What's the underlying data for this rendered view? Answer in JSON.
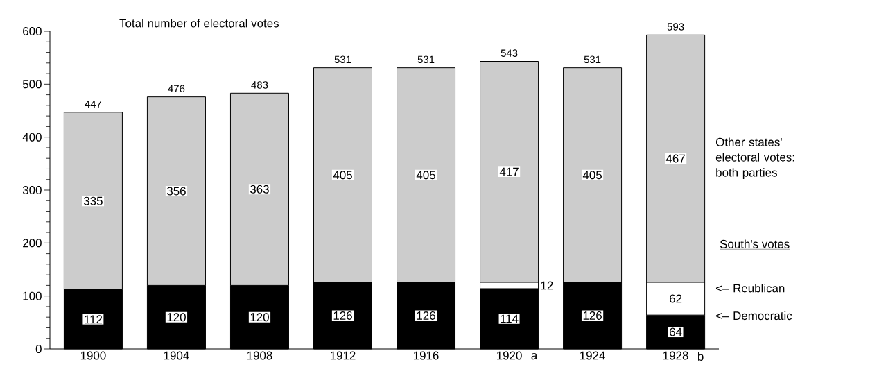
{
  "chart_data": {
    "type": "bar",
    "stacked": true,
    "title": "Total number of electoral votes",
    "categories": [
      "1900",
      "1904",
      "1908",
      "1912",
      "1916",
      "1920",
      "1924",
      "1928"
    ],
    "series": [
      {
        "name": "<– Democratic",
        "color": "#000000",
        "values": [
          112,
          120,
          120,
          126,
          126,
          114,
          126,
          64
        ],
        "value_labels": [
          "112",
          "120",
          "120",
          "126",
          "126",
          "114",
          "126",
          "64"
        ]
      },
      {
        "name": "<– Reublican",
        "color": "#ffffff",
        "values": [
          null,
          null,
          null,
          null,
          null,
          12,
          null,
          62
        ],
        "value_labels": [
          null,
          null,
          null,
          null,
          null,
          "12",
          null,
          "62"
        ]
      },
      {
        "name": "Other states' electoral votes: both parties",
        "color": "#cccccc",
        "values": [
          335,
          356,
          363,
          405,
          405,
          417,
          405,
          467
        ],
        "value_labels": [
          "335",
          "356",
          "363",
          "405",
          "405",
          "417",
          "405",
          "467"
        ]
      }
    ],
    "totals": [
      "447",
      "476",
      "483",
      "531",
      "531",
      "543",
      "531",
      "593"
    ],
    "ylim": [
      0,
      600
    ],
    "yticks": [
      0,
      100,
      200,
      300,
      400,
      500,
      600
    ],
    "grid": false,
    "legend": "right",
    "annotations": [
      "South's votes",
      "a",
      "b"
    ]
  }
}
